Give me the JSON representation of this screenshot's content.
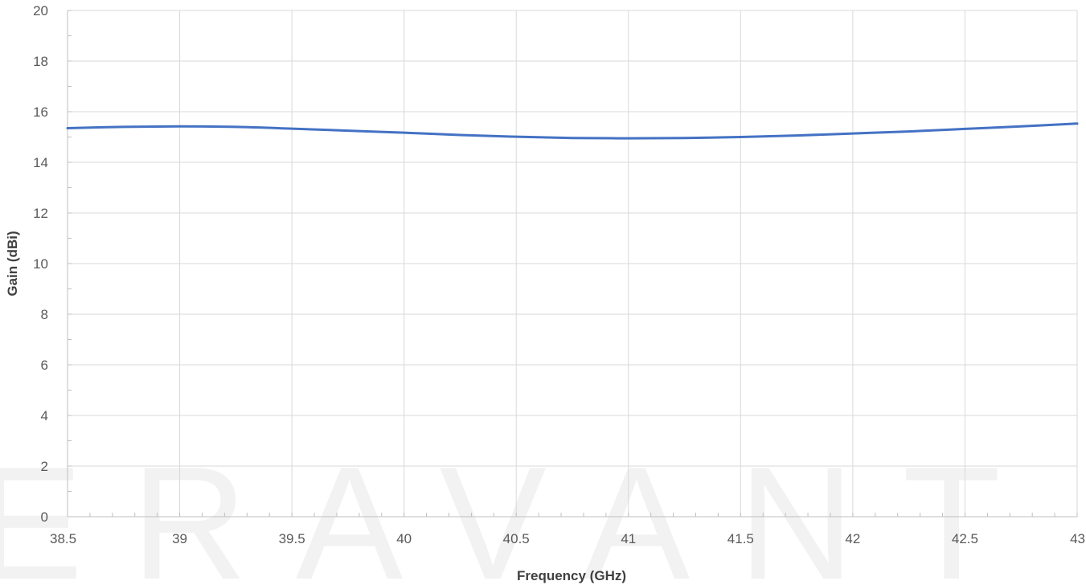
{
  "chart_data": {
    "type": "line",
    "title": "",
    "xlabel": "Frequency (GHz)",
    "ylabel": "Gain (dBi)",
    "xlim": [
      38.5,
      43
    ],
    "ylim": [
      0,
      20
    ],
    "x_ticks": [
      "38.5",
      "39",
      "39.5",
      "40",
      "40.5",
      "41",
      "41.5",
      "42",
      "42.5",
      "43"
    ],
    "y_ticks": [
      "0",
      "2",
      "4",
      "6",
      "8",
      "10",
      "12",
      "14",
      "16",
      "18",
      "20"
    ],
    "grid": true,
    "legend": "none",
    "watermark": "ERAVANT",
    "series": [
      {
        "color": "#4472C4",
        "x": [
          38.5,
          38.75,
          39,
          39.25,
          39.5,
          39.75,
          40,
          40.25,
          40.5,
          40.75,
          41,
          41.25,
          41.5,
          41.75,
          42,
          42.25,
          42.5,
          42.75,
          43
        ],
        "y": [
          15.35,
          15.4,
          15.42,
          15.4,
          15.33,
          15.25,
          15.17,
          15.08,
          15.01,
          14.96,
          14.95,
          14.96,
          15.0,
          15.06,
          15.14,
          15.22,
          15.32,
          15.42,
          15.53
        ]
      }
    ]
  }
}
